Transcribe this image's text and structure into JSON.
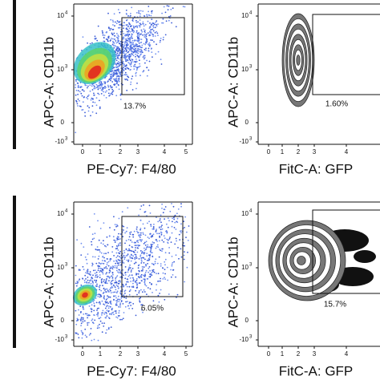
{
  "panels": [
    {
      "y_label": "APC-A: CD11b",
      "x_label": "PE-Cy7: F4/80",
      "gate_label": "13.7%",
      "y_ticks": [
        {
          "base": "10",
          "exp": "4"
        },
        {
          "base": "10",
          "exp": "3"
        },
        {
          "base": "0"
        },
        {
          "base": "-10",
          "exp": "3"
        }
      ],
      "x_ticks": [
        "0",
        "1",
        "2",
        "3",
        "4",
        "5"
      ]
    },
    {
      "y_label": "APC-A: CD11b",
      "x_label": "FitC-A: GFP",
      "gate_label": "1.60%",
      "y_ticks": [
        {
          "base": "10",
          "exp": "4"
        },
        {
          "base": "10",
          "exp": "3"
        },
        {
          "base": "0"
        },
        {
          "base": "-10",
          "exp": "3"
        }
      ],
      "x_ticks": [
        "0",
        "1",
        "2",
        "3",
        "4"
      ]
    },
    {
      "y_label": "APC-A: CD11b",
      "x_label": "PE-Cy7: F4/80",
      "gate_label": "6.05%",
      "y_ticks": [
        {
          "base": "10",
          "exp": "4"
        },
        {
          "base": "10",
          "exp": "3"
        },
        {
          "base": "0"
        },
        {
          "base": "-10",
          "exp": "3"
        }
      ],
      "x_ticks": [
        "0",
        "1",
        "2",
        "3",
        "4",
        "5"
      ]
    },
    {
      "y_label": "APC-A: CD11b",
      "x_label": "FitC-A: GFP",
      "gate_label": "15.7%",
      "y_ticks": [
        {
          "base": "10",
          "exp": "4"
        },
        {
          "base": "10",
          "exp": "3"
        },
        {
          "base": "0"
        },
        {
          "base": "-10",
          "exp": "3"
        }
      ],
      "x_ticks": [
        "0",
        "1",
        "2",
        "3",
        "4"
      ]
    }
  ]
}
